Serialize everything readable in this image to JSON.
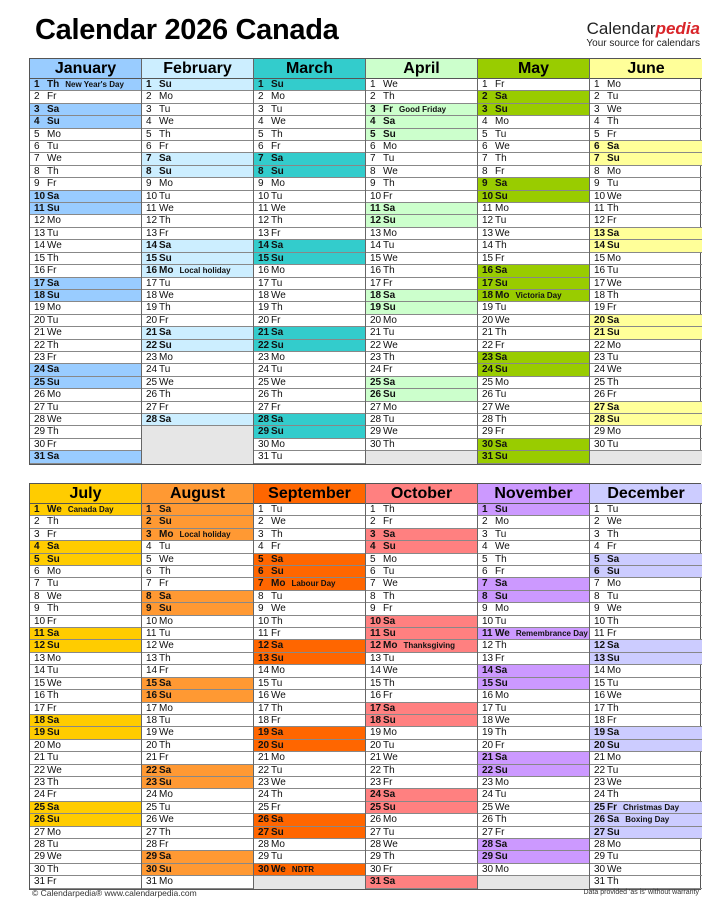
{
  "title": "Calendar 2026 Canada",
  "brand": {
    "name_plain": "Calendar",
    "name_accent": "pedia",
    "tagline": "Your source for calendars"
  },
  "footer": {
    "left": "© Calendarpedia®  www.calendarpedia.com",
    "right": "Data provided 'as is' without warranty"
  },
  "weekdays": [
    "Mo",
    "Tu",
    "We",
    "Th",
    "Fr",
    "Sa",
    "Su"
  ],
  "weekend": [
    "Sa",
    "Su"
  ],
  "empty_color": "#e6e6e6",
  "months": [
    {
      "name": "January",
      "color": "#99ccff",
      "first": "Th",
      "length": 31,
      "holidays": [
        {
          "day": 1,
          "name": "New Year's Day"
        }
      ]
    },
    {
      "name": "February",
      "color": "#cceeff",
      "first": "Su",
      "length": 28,
      "holidays": [
        {
          "day": 16,
          "name": "Local holiday"
        }
      ]
    },
    {
      "name": "March",
      "color": "#33cccc",
      "first": "Su",
      "length": 31,
      "holidays": []
    },
    {
      "name": "April",
      "color": "#ccffcc",
      "first": "We",
      "length": 30,
      "holidays": [
        {
          "day": 3,
          "name": "Good Friday"
        }
      ]
    },
    {
      "name": "May",
      "color": "#99cc00",
      "first": "Fr",
      "length": 31,
      "holidays": [
        {
          "day": 18,
          "name": "Victoria Day"
        }
      ]
    },
    {
      "name": "June",
      "color": "#ffff99",
      "first": "Mo",
      "length": 30,
      "holidays": []
    },
    {
      "name": "July",
      "color": "#ffcc00",
      "first": "We",
      "length": 31,
      "holidays": [
        {
          "day": 1,
          "name": "Canada Day"
        }
      ]
    },
    {
      "name": "August",
      "color": "#ff9933",
      "first": "Sa",
      "length": 31,
      "holidays": [
        {
          "day": 3,
          "name": "Local holiday"
        }
      ]
    },
    {
      "name": "September",
      "color": "#ff6600",
      "first": "Tu",
      "length": 30,
      "holidays": [
        {
          "day": 7,
          "name": "Labour Day"
        },
        {
          "day": 30,
          "name": "NDTR"
        }
      ]
    },
    {
      "name": "October",
      "color": "#ff8080",
      "first": "Th",
      "length": 31,
      "holidays": [
        {
          "day": 12,
          "name": "Thanksgiving"
        }
      ]
    },
    {
      "name": "November",
      "color": "#cc99ff",
      "first": "Su",
      "length": 30,
      "holidays": [
        {
          "day": 11,
          "name": "Remembrance Day"
        }
      ]
    },
    {
      "name": "December",
      "color": "#ccccff",
      "first": "Tu",
      "length": 31,
      "holidays": [
        {
          "day": 25,
          "name": "Christmas Day"
        },
        {
          "day": 26,
          "name": "Boxing Day"
        }
      ]
    }
  ]
}
